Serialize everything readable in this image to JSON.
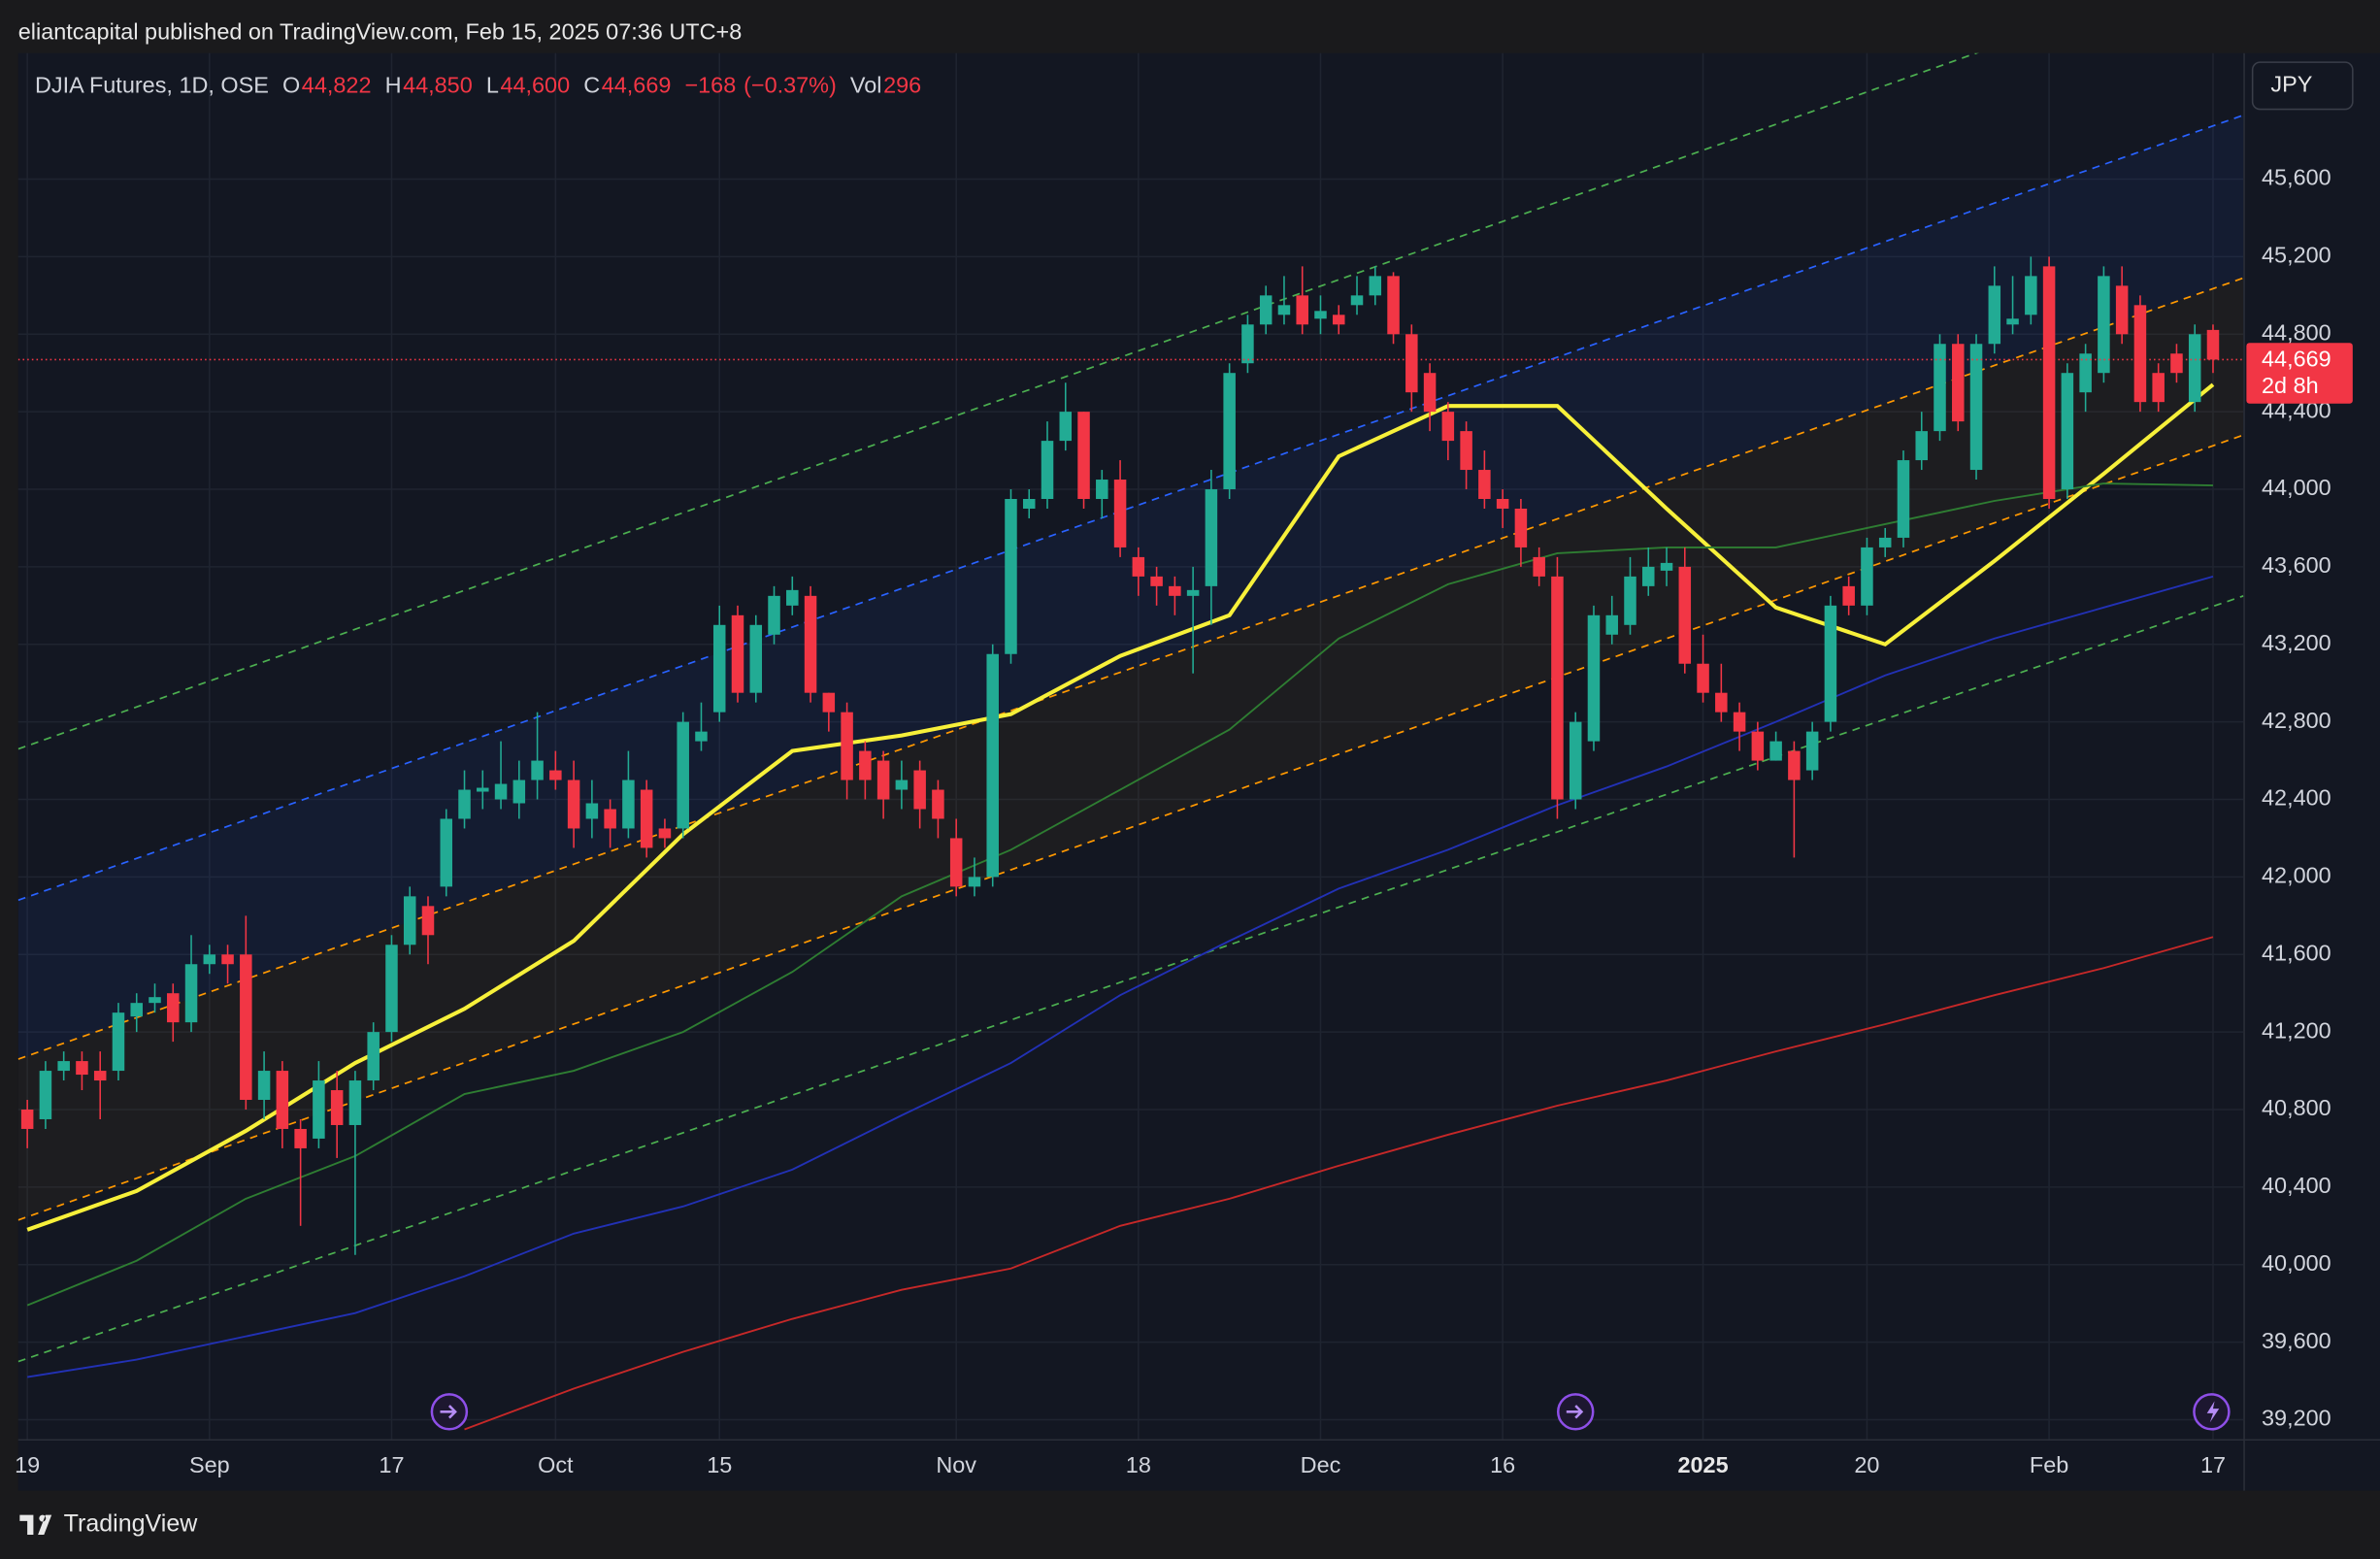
{
  "header": {
    "publisher": "eliantcapital published on TradingView.com, Feb 15, 2025 07:36 UTC+8"
  },
  "chart_data": {
    "type": "candlestick",
    "symbol": "DJIA Futures, 1D, OSE",
    "legend_values": [
      {
        "key": "O",
        "value": 44822,
        "label": "44,822"
      },
      {
        "key": "H",
        "value": 44850,
        "label": "44,850"
      },
      {
        "key": "L",
        "value": 44600,
        "label": "44,600"
      },
      {
        "key": "C",
        "value": 44669,
        "label": "44,669"
      },
      {
        "value": -168,
        "label": "−168"
      },
      {
        "value": -0.37,
        "label": "(−0.37%)"
      },
      {
        "key": "Vol",
        "value": 296,
        "label": "296"
      }
    ],
    "currency": "JPY",
    "last_price": {
      "value": 44669,
      "label": "44,669"
    },
    "countdown": "2d 8h",
    "categories": [
      "19",
      null,
      null,
      null,
      null,
      null,
      null,
      null,
      null,
      null,
      "Sep",
      null,
      null,
      null,
      null,
      null,
      null,
      null,
      null,
      null,
      "17",
      null,
      null,
      null,
      null,
      null,
      null,
      null,
      null,
      "Oct",
      null,
      null,
      null,
      null,
      null,
      null,
      null,
      null,
      "15",
      null,
      null,
      null,
      null,
      null,
      null,
      null,
      null,
      null,
      null,
      null,
      null,
      "Nov",
      null,
      null,
      null,
      null,
      null,
      null,
      null,
      null,
      null,
      "18",
      null,
      null,
      null,
      null,
      null,
      null,
      null,
      null,
      null,
      "Dec",
      null,
      null,
      null,
      null,
      null,
      null,
      null,
      null,
      null,
      "16",
      null,
      null,
      null,
      null,
      null,
      null,
      null,
      null,
      null,
      null,
      "2025",
      null,
      null,
      null,
      null,
      null,
      null,
      null,
      null,
      "20",
      null,
      null,
      null,
      null,
      null,
      null,
      null,
      null,
      null,
      "Feb",
      null,
      null,
      null,
      null,
      null,
      null,
      null,
      null,
      "17"
    ],
    "open": [
      40800,
      40750,
      41000,
      41050,
      41000,
      41000,
      41280,
      41350,
      41400,
      41250,
      41550,
      41600,
      41600,
      40850,
      41000,
      40700,
      40650,
      40900,
      40720,
      40950,
      41200,
      41650,
      41850,
      41950,
      42300,
      42440,
      42400,
      42380,
      42500,
      42550,
      42500,
      42300,
      42350,
      42250,
      42450,
      42250,
      42250,
      42700,
      42850,
      43350,
      42950,
      43250,
      43400,
      43450,
      42950,
      42850,
      42650,
      42600,
      42450,
      42550,
      42450,
      42200,
      41950,
      42000,
      43150,
      43900,
      43950,
      44250,
      44400,
      43950,
      44050,
      43650,
      43550,
      43500,
      43450,
      43500,
      44000,
      44650,
      44850,
      44900,
      45000,
      44880,
      44900,
      44950,
      45000,
      45100,
      44800,
      44600,
      44400,
      44300,
      44100,
      43950,
      43900,
      43650,
      43550,
      42400,
      42700,
      43250,
      43300,
      43500,
      43580,
      43600,
      43100,
      42950,
      42850,
      42750,
      42600,
      42650,
      42550,
      42800,
      43500,
      43400,
      43700,
      43750,
      44150,
      44300,
      44750,
      44100,
      44750,
      44850,
      44900,
      45150,
      44000,
      44500,
      44600,
      45050,
      44950,
      44600,
      44700,
      44450,
      44822
    ],
    "high": [
      40850,
      41050,
      41100,
      41100,
      41100,
      41350,
      41400,
      41450,
      41450,
      41700,
      41650,
      41650,
      41800,
      41100,
      41050,
      40750,
      41050,
      41000,
      41000,
      41250,
      41700,
      41950,
      41900,
      42350,
      42550,
      42550,
      42700,
      42600,
      42850,
      42650,
      42600,
      42500,
      42400,
      42650,
      42500,
      42300,
      42850,
      42900,
      43400,
      43400,
      43350,
      43500,
      43550,
      43500,
      42950,
      42900,
      42700,
      42650,
      42600,
      42600,
      42500,
      42300,
      42100,
      43200,
      44000,
      44000,
      44350,
      44550,
      44400,
      44100,
      44150,
      43700,
      43600,
      43550,
      43600,
      44100,
      44650,
      44900,
      45050,
      45100,
      45150,
      45000,
      44950,
      45100,
      45150,
      45120,
      44850,
      44650,
      44450,
      44350,
      44200,
      44000,
      43950,
      43700,
      43650,
      42850,
      43400,
      43450,
      43650,
      43700,
      43700,
      43700,
      43250,
      43100,
      42900,
      42800,
      42750,
      42700,
      42800,
      43450,
      43550,
      43750,
      43800,
      44200,
      44400,
      44800,
      44800,
      44800,
      45150,
      45100,
      45200,
      45200,
      44650,
      44750,
      45150,
      45150,
      45000,
      44650,
      44750,
      44850,
      44850
    ],
    "low": [
      40600,
      40700,
      40950,
      40900,
      40750,
      40950,
      41200,
      41300,
      41150,
      41200,
      41500,
      41450,
      40800,
      40750,
      40600,
      40200,
      40600,
      40550,
      40050,
      40900,
      41150,
      41600,
      41550,
      41900,
      42250,
      42350,
      42350,
      42300,
      42400,
      42450,
      42150,
      42200,
      42150,
      42200,
      42100,
      42150,
      42200,
      42650,
      42800,
      42900,
      42900,
      43200,
      43350,
      42900,
      42750,
      42400,
      42400,
      42300,
      42350,
      42250,
      42200,
      41900,
      41900,
      41950,
      43100,
      43850,
      43900,
      44200,
      43900,
      43850,
      43650,
      43450,
      43400,
      43350,
      43050,
      43300,
      43950,
      44600,
      44800,
      44850,
      44800,
      44800,
      44800,
      44900,
      44950,
      44750,
      44400,
      44300,
      44150,
      44000,
      43900,
      43800,
      43600,
      43500,
      42300,
      42350,
      42650,
      43200,
      43250,
      43450,
      43500,
      43050,
      42900,
      42800,
      42650,
      42550,
      42600,
      42100,
      42500,
      42750,
      43350,
      43350,
      43650,
      43700,
      44100,
      44250,
      44300,
      44050,
      44700,
      44800,
      44850,
      43900,
      43950,
      44400,
      44550,
      44750,
      44400,
      44400,
      44550,
      44400,
      44600
    ],
    "close": [
      40700,
      41000,
      41050,
      40980,
      40950,
      41300,
      41350,
      41380,
      41250,
      41550,
      41600,
      41550,
      40850,
      41000,
      40700,
      40600,
      40950,
      40720,
      40950,
      41200,
      41650,
      41900,
      41700,
      42300,
      42450,
      42460,
      42480,
      42500,
      42600,
      42500,
      42250,
      42380,
      42250,
      42500,
      42150,
      42200,
      42800,
      42750,
      43300,
      42950,
      43300,
      43450,
      43480,
      42950,
      42850,
      42500,
      42500,
      42400,
      42500,
      42350,
      42300,
      41950,
      42000,
      43150,
      43950,
      43950,
      44250,
      44400,
      43950,
      44050,
      43700,
      43550,
      43500,
      43450,
      43480,
      44000,
      44600,
      44850,
      45000,
      44950,
      44850,
      44920,
      44850,
      45000,
      45100,
      44800,
      44500,
      44400,
      44250,
      44100,
      43950,
      43900,
      43700,
      43550,
      42400,
      42800,
      43350,
      43350,
      43550,
      43600,
      43620,
      43100,
      42950,
      42850,
      42750,
      42600,
      42700,
      42500,
      42750,
      43400,
      43400,
      43700,
      43750,
      44150,
      44300,
      44750,
      44350,
      44750,
      45050,
      44880,
      45100,
      43950,
      44600,
      44700,
      45100,
      44800,
      44450,
      44450,
      44600,
      44800,
      44669
    ],
    "up_color": "#22ab94",
    "down_color": "#f23645",
    "moving_averages": [
      {
        "color": "#f7f03a",
        "x": [
          0,
          6,
          12,
          18,
          24,
          30,
          36,
          42,
          48,
          54,
          60,
          66,
          72,
          78,
          84,
          90,
          96,
          102,
          108,
          114,
          120
        ],
        "values": [
          40180,
          40380,
          40690,
          41040,
          41320,
          41670,
          42220,
          42650,
          42730,
          42840,
          43140,
          43350,
          44170,
          44430,
          44430,
          43900,
          43390,
          43200,
          43630,
          44080,
          44540
        ]
      },
      {
        "color": "#2e7d32",
        "x": [
          0,
          6,
          12,
          18,
          24,
          30,
          36,
          42,
          48,
          54,
          60,
          66,
          72,
          78,
          84,
          90,
          96,
          102,
          108,
          114,
          120
        ],
        "values": [
          39790,
          40020,
          40340,
          40560,
          40880,
          41000,
          41200,
          41510,
          41900,
          42140,
          42450,
          42760,
          43230,
          43510,
          43670,
          43700,
          43700,
          43820,
          43940,
          44030,
          44020
        ]
      },
      {
        "color": "#2231b5",
        "x": [
          0,
          6,
          12,
          18,
          24,
          30,
          36,
          42,
          48,
          54,
          60,
          66,
          72,
          78,
          84,
          90,
          96,
          102,
          108,
          114,
          120
        ],
        "values": [
          39420,
          39510,
          39630,
          39750,
          39940,
          40160,
          40300,
          40490,
          40770,
          41040,
          41390,
          41670,
          41940,
          42140,
          42370,
          42570,
          42800,
          43040,
          43230,
          43390,
          43550
        ]
      },
      {
        "color": "#c62828",
        "x": [
          0,
          6,
          12,
          18,
          24,
          30,
          36,
          42,
          48,
          54,
          60,
          66,
          72,
          78,
          84,
          90,
          96,
          102,
          108,
          114,
          120
        ],
        "values": [
          null,
          null,
          null,
          null,
          39150,
          39360,
          39550,
          39720,
          39870,
          39980,
          40200,
          40340,
          40510,
          40670,
          40820,
          40950,
          41100,
          41240,
          41390,
          41530,
          41690
        ]
      }
    ],
    "channels": [
      {
        "color": "#4caf50",
        "x": [
          -0.5,
          121.67
        ],
        "values": [
          42660,
          46740
        ]
      },
      {
        "color": "#2962ff",
        "x": [
          -0.5,
          121.67
        ],
        "values": [
          41880,
          45930
        ]
      },
      {
        "color": "#ff9800",
        "x": [
          -0.5,
          121.67
        ],
        "values": [
          41060,
          45090
        ]
      },
      {
        "color": "#ff9800",
        "x": [
          -0.5,
          121.67
        ],
        "values": [
          40230,
          44280
        ]
      },
      {
        "color": "#4caf50",
        "x": [
          -0.5,
          121.67
        ],
        "values": [
          39500,
          43450
        ]
      }
    ],
    "ylim": [
      39100,
      46250
    ],
    "yticks": [
      {
        "value": 39200,
        "label": "39,200"
      },
      {
        "value": 39600,
        "label": "39,600"
      },
      {
        "value": 40000,
        "label": "40,000"
      },
      {
        "value": 40400,
        "label": "40,400"
      },
      {
        "value": 40800,
        "label": "40,800"
      },
      {
        "value": 41200,
        "label": "41,200"
      },
      {
        "value": 41600,
        "label": "41,600"
      },
      {
        "value": 42000,
        "label": "42,000"
      },
      {
        "value": 42400,
        "label": "42,400"
      },
      {
        "value": 42800,
        "label": "42,800"
      },
      {
        "value": 43200,
        "label": "43,200"
      },
      {
        "value": 43600,
        "label": "43,600"
      },
      {
        "value": 44000,
        "label": "44,000"
      },
      {
        "value": 44400,
        "label": "44,400"
      },
      {
        "value": 44800,
        "label": "44,800"
      },
      {
        "value": 45200,
        "label": "45,200"
      },
      {
        "value": 45600,
        "label": "45,600"
      }
    ]
  },
  "footer": {
    "brand": "TradingView"
  }
}
